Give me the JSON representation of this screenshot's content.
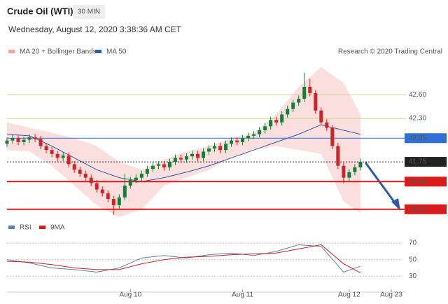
{
  "chart_data": {
    "type": "candlestick",
    "title": "Crude Oil (WTI)",
    "interval": "30 MIN",
    "subtitle": "Wednesday, August 12, 2020 3:38:36 AM CET",
    "credit": "Research © 2020 Trading Central",
    "up_color": "#1e7a3a",
    "down_color": "#c62828",
    "xlim": [
      0,
      70.5
    ],
    "ylim": [
      41.05,
      43.09
    ],
    "xticks": [
      {
        "value": 22,
        "label": "Aug 10"
      },
      {
        "value": 42,
        "label": "Aug 11"
      },
      {
        "value": 61,
        "label": "Aug 12"
      },
      {
        "value": 68.5,
        "label": "Aug 23"
      }
    ],
    "open": [
      41.98,
      42.02,
      42.05,
      42.0,
      42.03,
      42.06,
      42.04,
      41.95,
      41.9,
      41.85,
      41.8,
      41.83,
      41.72,
      41.65,
      41.6,
      41.55,
      41.48,
      41.4,
      41.35,
      41.28,
      41.2,
      41.3,
      41.45,
      41.52,
      41.55,
      41.6,
      41.66,
      41.7,
      41.72,
      41.68,
      41.75,
      41.8,
      41.78,
      41.82,
      41.85,
      41.8,
      41.88,
      41.92,
      41.95,
      41.9,
      41.98,
      42.02,
      42.0,
      42.05,
      42.08,
      42.1,
      42.15,
      42.2,
      42.28,
      42.25,
      42.35,
      42.42,
      42.5,
      42.55,
      42.7,
      42.62,
      42.4,
      42.25,
      42.18,
      41.95,
      41.7,
      41.55,
      41.62,
      41.68
    ],
    "high": [
      42.06,
      42.09,
      42.09,
      42.07,
      42.1,
      42.1,
      42.08,
      41.99,
      41.94,
      41.89,
      41.87,
      41.87,
      41.76,
      41.69,
      41.64,
      41.59,
      41.52,
      41.44,
      41.39,
      41.32,
      41.34,
      41.6,
      41.56,
      41.59,
      41.64,
      41.7,
      41.74,
      41.76,
      41.76,
      41.79,
      41.84,
      41.84,
      41.86,
      41.89,
      41.89,
      41.92,
      41.96,
      41.99,
      41.99,
      42.02,
      42.06,
      42.06,
      42.09,
      42.12,
      42.14,
      42.19,
      42.24,
      42.32,
      42.32,
      42.39,
      42.46,
      42.54,
      42.59,
      42.88,
      42.8,
      42.66,
      42.44,
      42.29,
      42.22,
      41.99,
      41.74,
      41.66,
      41.72,
      41.79
    ],
    "low": [
      41.94,
      41.98,
      41.96,
      41.96,
      41.99,
      42.0,
      41.91,
      41.86,
      41.81,
      41.76,
      41.76,
      41.68,
      41.61,
      41.56,
      41.51,
      41.44,
      41.36,
      41.31,
      41.24,
      41.08,
      41.16,
      41.26,
      41.41,
      41.48,
      41.51,
      41.56,
      41.62,
      41.66,
      41.64,
      41.64,
      41.71,
      41.74,
      41.74,
      41.78,
      41.76,
      41.76,
      41.84,
      41.88,
      41.86,
      41.86,
      41.94,
      41.96,
      41.96,
      42.01,
      42.04,
      42.06,
      42.11,
      42.16,
      42.21,
      42.21,
      42.31,
      42.38,
      42.46,
      42.51,
      42.58,
      42.36,
      42.21,
      42.14,
      41.91,
      41.66,
      41.48,
      41.51,
      41.58,
      41.64
    ],
    "close": [
      42.02,
      42.05,
      42.0,
      42.03,
      42.06,
      42.04,
      41.95,
      41.9,
      41.85,
      41.8,
      41.83,
      41.72,
      41.65,
      41.6,
      41.55,
      41.48,
      41.4,
      41.35,
      41.28,
      41.2,
      41.3,
      41.45,
      41.52,
      41.55,
      41.6,
      41.66,
      41.7,
      41.72,
      41.68,
      41.75,
      41.8,
      41.78,
      41.82,
      41.85,
      41.8,
      41.88,
      41.92,
      41.95,
      41.9,
      41.98,
      42.02,
      42.0,
      42.05,
      42.08,
      42.1,
      42.15,
      42.2,
      42.28,
      42.25,
      42.35,
      42.42,
      42.5,
      42.55,
      42.7,
      42.62,
      42.4,
      42.25,
      42.18,
      41.95,
      41.7,
      41.55,
      41.62,
      41.68,
      41.75
    ],
    "indicators": {
      "x": [
        0,
        4,
        8,
        12,
        16,
        20,
        24,
        28,
        32,
        36,
        40,
        44,
        48,
        52,
        56,
        60,
        63
      ],
      "series": [
        {
          "name": "MA 20 + Bollinger Bands",
          "color": "#f4a3a3",
          "upper": [
            42.25,
            42.18,
            42.12,
            42.05,
            41.95,
            41.75,
            41.65,
            41.78,
            41.88,
            41.95,
            42.05,
            42.12,
            42.35,
            42.7,
            42.95,
            42.75,
            42.35
          ],
          "lower": [
            41.9,
            41.88,
            41.7,
            41.45,
            41.2,
            41.05,
            41.15,
            41.45,
            41.55,
            41.65,
            41.8,
            41.9,
            41.95,
            41.9,
            41.85,
            41.25,
            41.1
          ]
        },
        {
          "name": "MA 50",
          "color": "#2f5aa8",
          "values": [
            42.1,
            42.08,
            41.95,
            41.8,
            41.65,
            41.55,
            41.5,
            41.55,
            41.62,
            41.7,
            41.8,
            41.9,
            42.0,
            42.1,
            42.22,
            42.15,
            42.1
          ]
        }
      ]
    },
    "levels": [
      {
        "value": 42.6,
        "label": "42.60",
        "color": "#c9d08a",
        "text_color": "#5f8a1e",
        "box": false
      },
      {
        "value": 42.3,
        "label": "42.30",
        "color": "#c9d08a",
        "text_color": "#5f8a1e",
        "box": false
      },
      {
        "value": 42.05,
        "label": "42.05",
        "color": "#2f6fd6",
        "text_color": "#ffffff",
        "box": true
      },
      {
        "value": 41.75,
        "label": "41.75",
        "color": "#222222",
        "text_color": "#ffffff",
        "box": true
      },
      {
        "value": 41.5,
        "label": "41.50",
        "color": "#d81b1b",
        "text_color": "#ffffff",
        "box": true
      },
      {
        "value": 41.15,
        "label": "41.15",
        "color": "#d81b1b",
        "text_color": "#ffffff",
        "box": true
      }
    ],
    "rsi": {
      "ylim": [
        15,
        76
      ],
      "yticks": [
        70,
        50,
        30
      ],
      "x": [
        0,
        4,
        8,
        12,
        16,
        20,
        24,
        28,
        32,
        36,
        40,
        44,
        48,
        52,
        56,
        60,
        63
      ],
      "series": [
        {
          "name": "RSI",
          "color": "#5b7fb5",
          "values": [
            50,
            46,
            40,
            38,
            35,
            40,
            52,
            55,
            52,
            56,
            58,
            55,
            60,
            68,
            66,
            35,
            42
          ]
        },
        {
          "name": "9MA",
          "color": "#d02020",
          "values": [
            48,
            47,
            44,
            40,
            38,
            38,
            45,
            50,
            53,
            54,
            56,
            57,
            58,
            63,
            68,
            45,
            34
          ]
        }
      ]
    }
  }
}
